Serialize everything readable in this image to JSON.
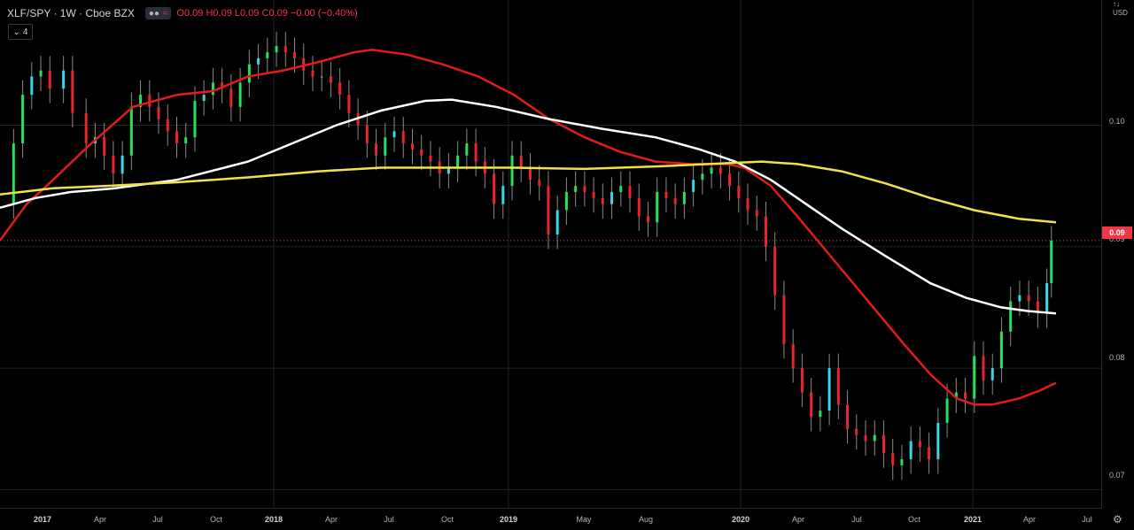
{
  "header": {
    "symbol": "XLF/SPY · 1W · Cboe BZX",
    "ohlc": {
      "o": "O0.09",
      "h": "H0.09",
      "l": "L0.09",
      "c": "C0.09",
      "chg": "−0.00 (−0.40%)"
    },
    "collapse_label": "4"
  },
  "price_axis": {
    "currency": "USD",
    "labels": [
      "0.10",
      "0.09",
      "0.08",
      "0.07"
    ],
    "last_price": "0.09"
  },
  "time_axis": {
    "labels": [
      "2017",
      "Apr",
      "Jul",
      "Oct",
      "2018",
      "Apr",
      "Jul",
      "Oct",
      "2019",
      "May",
      "Aug",
      "2020",
      "Apr",
      "Jul",
      "Oct",
      "2021",
      "Apr",
      "Jul"
    ]
  },
  "colors": {
    "background": "#000000",
    "candle_up": "#26e05c",
    "candle_down": "#e8242d",
    "candle_cyan": "#35d8e8",
    "sma_fast": "#e31b1b",
    "sma_mid": "#ffffff",
    "sma_slow": "#f2e24a",
    "grid": "#1e222d"
  },
  "chart_data": {
    "type": "candlestick",
    "title": "XLF/SPY · 1W · Cboe BZX",
    "ylim": [
      0.0685,
      0.1103
    ],
    "yticks": [
      0.07,
      0.08,
      0.09,
      0.1
    ],
    "xlim": [
      "2016-11-28",
      "2021-07-26"
    ],
    "last_price": 0.0905,
    "close_series": [
      [
        "2016-12-05",
        0.0935
      ],
      [
        "2016-12-19",
        0.0985
      ],
      [
        "2017-01-02",
        0.1025
      ],
      [
        "2017-01-16",
        0.104
      ],
      [
        "2017-01-30",
        0.1045
      ],
      [
        "2017-02-13",
        0.103
      ],
      [
        "2017-03-06",
        0.1045
      ],
      [
        "2017-03-20",
        0.101
      ],
      [
        "2017-04-10",
        0.0985
      ],
      [
        "2017-04-24",
        0.099
      ],
      [
        "2017-05-08",
        0.0975
      ],
      [
        "2017-05-22",
        0.096
      ],
      [
        "2017-06-05",
        0.0975
      ],
      [
        "2017-06-19",
        0.1015
      ],
      [
        "2017-07-03",
        0.1025
      ],
      [
        "2017-07-17",
        0.1015
      ],
      [
        "2017-07-31",
        0.1005
      ],
      [
        "2017-08-14",
        0.0995
      ],
      [
        "2017-08-28",
        0.0985
      ],
      [
        "2017-09-11",
        0.099
      ],
      [
        "2017-09-25",
        0.102
      ],
      [
        "2017-10-09",
        0.1025
      ],
      [
        "2017-10-23",
        0.1035
      ],
      [
        "2017-11-06",
        0.103
      ],
      [
        "2017-11-20",
        0.1015
      ],
      [
        "2017-12-04",
        0.1035
      ],
      [
        "2017-12-18",
        0.105
      ],
      [
        "2018-01-01",
        0.1055
      ],
      [
        "2018-01-15",
        0.106
      ],
      [
        "2018-01-29",
        0.1065
      ],
      [
        "2018-02-12",
        0.106
      ],
      [
        "2018-02-26",
        0.1055
      ],
      [
        "2018-03-12",
        0.1045
      ],
      [
        "2018-03-26",
        0.104
      ],
      [
        "2018-04-09",
        0.104
      ],
      [
        "2018-04-23",
        0.1035
      ],
      [
        "2018-05-07",
        0.1025
      ],
      [
        "2018-05-21",
        0.101
      ],
      [
        "2018-06-04",
        0.1
      ],
      [
        "2018-06-18",
        0.0985
      ],
      [
        "2018-07-02",
        0.0975
      ],
      [
        "2018-07-16",
        0.099
      ],
      [
        "2018-07-30",
        0.0995
      ],
      [
        "2018-08-13",
        0.0985
      ],
      [
        "2018-08-27",
        0.098
      ],
      [
        "2018-09-10",
        0.0975
      ],
      [
        "2018-09-24",
        0.097
      ],
      [
        "2018-10-08",
        0.096
      ],
      [
        "2018-10-22",
        0.0965
      ],
      [
        "2018-11-05",
        0.0975
      ],
      [
        "2018-11-19",
        0.0985
      ],
      [
        "2018-12-03",
        0.097
      ],
      [
        "2018-12-17",
        0.096
      ],
      [
        "2018-12-31",
        0.0935
      ],
      [
        "2019-01-14",
        0.095
      ],
      [
        "2019-01-28",
        0.0975
      ],
      [
        "2019-02-11",
        0.0965
      ],
      [
        "2019-02-25",
        0.0955
      ],
      [
        "2019-03-11",
        0.095
      ],
      [
        "2019-03-25",
        0.091
      ],
      [
        "2019-04-08",
        0.093
      ],
      [
        "2019-04-22",
        0.0945
      ],
      [
        "2019-05-06",
        0.095
      ],
      [
        "2019-05-20",
        0.0945
      ],
      [
        "2019-06-03",
        0.094
      ],
      [
        "2019-06-17",
        0.0935
      ],
      [
        "2019-07-01",
        0.0945
      ],
      [
        "2019-07-15",
        0.095
      ],
      [
        "2019-07-29",
        0.094
      ],
      [
        "2019-08-12",
        0.0925
      ],
      [
        "2019-08-26",
        0.092
      ],
      [
        "2019-09-09",
        0.0945
      ],
      [
        "2019-09-23",
        0.094
      ],
      [
        "2019-10-07",
        0.0935
      ],
      [
        "2019-10-21",
        0.0945
      ],
      [
        "2019-11-04",
        0.0955
      ],
      [
        "2019-11-18",
        0.096
      ],
      [
        "2019-12-02",
        0.0965
      ],
      [
        "2019-12-16",
        0.096
      ],
      [
        "2019-12-30",
        0.095
      ],
      [
        "2020-01-13",
        0.094
      ],
      [
        "2020-01-27",
        0.093
      ],
      [
        "2020-02-10",
        0.0925
      ],
      [
        "2020-02-24",
        0.09
      ],
      [
        "2020-03-09",
        0.086
      ],
      [
        "2020-03-23",
        0.082
      ],
      [
        "2020-04-06",
        0.08
      ],
      [
        "2020-04-20",
        0.078
      ],
      [
        "2020-05-04",
        0.076
      ],
      [
        "2020-05-18",
        0.0765
      ],
      [
        "2020-06-01",
        0.08
      ],
      [
        "2020-06-15",
        0.077
      ],
      [
        "2020-06-29",
        0.075
      ],
      [
        "2020-07-13",
        0.0745
      ],
      [
        "2020-07-27",
        0.074
      ],
      [
        "2020-08-10",
        0.0745
      ],
      [
        "2020-08-24",
        0.073
      ],
      [
        "2020-09-07",
        0.072
      ],
      [
        "2020-09-21",
        0.0725
      ],
      [
        "2020-10-05",
        0.074
      ],
      [
        "2020-10-19",
        0.0735
      ],
      [
        "2020-11-02",
        0.0725
      ],
      [
        "2020-11-16",
        0.0755
      ],
      [
        "2020-11-30",
        0.0775
      ],
      [
        "2020-12-14",
        0.078
      ],
      [
        "2020-12-28",
        0.0775
      ],
      [
        "2021-01-11",
        0.081
      ],
      [
        "2021-01-25",
        0.079
      ],
      [
        "2021-02-08",
        0.08
      ],
      [
        "2021-02-22",
        0.083
      ],
      [
        "2021-03-08",
        0.0855
      ],
      [
        "2021-03-22",
        0.086
      ],
      [
        "2021-04-05",
        0.0855
      ],
      [
        "2021-04-19",
        0.0845
      ],
      [
        "2021-05-03",
        0.087
      ],
      [
        "2021-05-10",
        0.0905
      ]
    ],
    "series": [
      {
        "values": [
          [
            0,
            0.0905
          ],
          [
            30,
            0.0935
          ],
          [
            60,
            0.0955
          ],
          [
            100,
            0.0983
          ],
          [
            150,
            0.1015
          ],
          [
            200,
            0.1025
          ],
          [
            240,
            0.1028
          ],
          [
            280,
            0.104
          ],
          [
            320,
            0.1045
          ],
          [
            360,
            0.1052
          ],
          [
            400,
            0.106
          ],
          [
            420,
            0.1062
          ],
          [
            460,
            0.1058
          ],
          [
            500,
            0.105
          ],
          [
            540,
            0.104
          ],
          [
            580,
            0.1025
          ],
          [
            620,
            0.1005
          ],
          [
            660,
            0.099
          ],
          [
            700,
            0.0978
          ],
          [
            740,
            0.097
          ],
          [
            780,
            0.0968
          ],
          [
            820,
            0.0968
          ],
          [
            840,
            0.0965
          ],
          [
            870,
            0.095
          ],
          [
            900,
            0.0925
          ],
          [
            940,
            0.089
          ],
          [
            980,
            0.0855
          ],
          [
            1020,
            0.082
          ],
          [
            1050,
            0.0795
          ],
          [
            1080,
            0.0775
          ],
          [
            1100,
            0.077
          ],
          [
            1120,
            0.077
          ],
          [
            1150,
            0.0775
          ],
          [
            1175,
            0.0782
          ],
          [
            1192,
            0.0788
          ]
        ]
      },
      {
        "values": [
          [
            0,
            0.0932
          ],
          [
            40,
            0.094
          ],
          [
            80,
            0.0945
          ],
          [
            130,
            0.0948
          ],
          [
            200,
            0.0955
          ],
          [
            280,
            0.097
          ],
          [
            330,
            0.0985
          ],
          [
            380,
            0.1
          ],
          [
            430,
            0.1012
          ],
          [
            480,
            0.102
          ],
          [
            510,
            0.1021
          ],
          [
            560,
            0.1015
          ],
          [
            620,
            0.1005
          ],
          [
            680,
            0.0997
          ],
          [
            740,
            0.099
          ],
          [
            790,
            0.098
          ],
          [
            830,
            0.097
          ],
          [
            870,
            0.0955
          ],
          [
            910,
            0.0935
          ],
          [
            950,
            0.0915
          ],
          [
            1000,
            0.0892
          ],
          [
            1050,
            0.087
          ],
          [
            1090,
            0.0858
          ],
          [
            1130,
            0.085
          ],
          [
            1160,
            0.0847
          ],
          [
            1192,
            0.0845
          ]
        ]
      },
      {
        "values": [
          [
            0,
            0.0943
          ],
          [
            60,
            0.0948
          ],
          [
            120,
            0.095
          ],
          [
            200,
            0.0953
          ],
          [
            280,
            0.0957
          ],
          [
            360,
            0.0962
          ],
          [
            430,
            0.0965
          ],
          [
            500,
            0.0965
          ],
          [
            580,
            0.0965
          ],
          [
            660,
            0.0964
          ],
          [
            740,
            0.0966
          ],
          [
            800,
            0.0968
          ],
          [
            860,
            0.097
          ],
          [
            900,
            0.0968
          ],
          [
            950,
            0.0962
          ],
          [
            1000,
            0.0952
          ],
          [
            1050,
            0.094
          ],
          [
            1100,
            0.093
          ],
          [
            1150,
            0.0923
          ],
          [
            1192,
            0.092
          ]
        ]
      }
    ]
  }
}
